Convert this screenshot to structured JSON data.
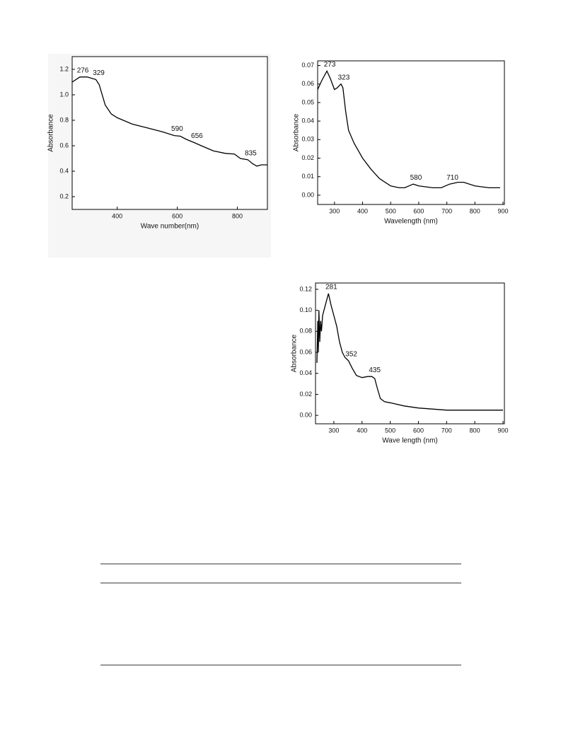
{
  "chart_data": [
    {
      "type": "line",
      "xlabel": "Wave number(nm)",
      "ylabel": "Absorbance",
      "color": "#000000",
      "x": [
        250,
        276,
        300,
        329,
        340,
        360,
        380,
        400,
        450,
        500,
        550,
        590,
        610,
        630,
        656,
        680,
        720,
        760,
        790,
        810,
        835,
        850,
        865,
        880,
        900
      ],
      "values": [
        1.1,
        1.14,
        1.14,
        1.12,
        1.08,
        0.92,
        0.85,
        0.82,
        0.77,
        0.74,
        0.71,
        0.68,
        0.675,
        0.65,
        0.625,
        0.6,
        0.56,
        0.54,
        0.535,
        0.5,
        0.49,
        0.46,
        0.44,
        0.45,
        0.45
      ],
      "xlim": [
        250,
        900
      ],
      "xticks": [
        400,
        600,
        800
      ],
      "ylim": [
        0.1,
        1.3
      ],
      "yticks": [
        0.2,
        0.4,
        0.6,
        0.8,
        {
          "value": 1.0,
          "label": "1.0"
        },
        1.2
      ],
      "annotations": [
        {
          "x": 276,
          "label": "276"
        },
        {
          "x": 329,
          "label": "329"
        },
        {
          "x": 590,
          "label": "590"
        },
        {
          "x": 656,
          "label": "656"
        },
        {
          "x": 835,
          "label": "835"
        }
      ]
    },
    {
      "type": "line",
      "xlabel": "Wavelength (nm)",
      "ylabel": "Absorbance",
      "color": "#000000",
      "x": [
        240,
        255,
        273,
        285,
        300,
        310,
        323,
        330,
        340,
        350,
        370,
        400,
        430,
        460,
        500,
        530,
        550,
        565,
        580,
        600,
        650,
        680,
        710,
        740,
        760,
        800,
        850,
        890
      ],
      "values": [
        0.057,
        0.062,
        0.067,
        0.063,
        0.057,
        0.058,
        0.06,
        0.058,
        0.045,
        0.035,
        0.028,
        0.02,
        0.014,
        0.009,
        0.005,
        0.004,
        0.004,
        0.005,
        0.006,
        0.005,
        0.004,
        0.004,
        0.006,
        0.007,
        0.007,
        0.005,
        0.004,
        0.004
      ],
      "xlim": [
        240,
        905
      ],
      "xticks": [
        300,
        400,
        500,
        600,
        700,
        800,
        900
      ],
      "ylim": [
        -0.005,
        0.0725
      ],
      "yticks": [
        {
          "value": 0,
          "label": "0.00"
        },
        0.01,
        0.02,
        0.03,
        0.04,
        0.05,
        0.06,
        0.07
      ],
      "annotations": [
        {
          "x": 273,
          "label": "273"
        },
        {
          "x": 323,
          "label": "323"
        },
        {
          "x": 580,
          "label": "580"
        },
        {
          "x": 710,
          "label": "710"
        }
      ]
    },
    {
      "type": "line",
      "xlabel": "Wave length (nm)",
      "ylabel": "Absorbance",
      "color": "#000000",
      "x": [
        240,
        243,
        245,
        247,
        250,
        253,
        256,
        260,
        270,
        281,
        290,
        300,
        310,
        320,
        330,
        340,
        352,
        365,
        380,
        400,
        420,
        435,
        445,
        455,
        465,
        480,
        500,
        550,
        600,
        650,
        700,
        750,
        800,
        850,
        900
      ],
      "values": [
        0.05,
        0.09,
        0.06,
        0.1,
        0.07,
        0.09,
        0.08,
        0.095,
        0.105,
        0.116,
        0.105,
        0.095,
        0.085,
        0.07,
        0.06,
        0.055,
        0.052,
        0.045,
        0.038,
        0.036,
        0.037,
        0.037,
        0.035,
        0.025,
        0.016,
        0.013,
        0.012,
        0.009,
        0.007,
        0.006,
        0.005,
        0.005,
        0.005,
        0.005,
        0.005
      ],
      "xlim": [
        235,
        905
      ],
      "xticks": [
        300,
        400,
        500,
        600,
        700,
        800,
        900
      ],
      "ylim": [
        -0.008,
        0.126
      ],
      "yticks": [
        {
          "value": 0,
          "label": "0.00"
        },
        {
          "value": 0.02,
          "label": "0.02"
        },
        {
          "value": 0.04,
          "label": "0.04"
        },
        {
          "value": 0.06,
          "label": "0.06"
        },
        {
          "value": 0.08,
          "label": "0.08"
        },
        {
          "value": 0.1,
          "label": "0.10"
        },
        {
          "value": 0.12,
          "label": "0.12"
        }
      ],
      "annotations": [
        {
          "x": 281,
          "label": "281"
        },
        {
          "x": 352,
          "label": "352"
        },
        {
          "x": 435,
          "label": "435"
        }
      ]
    }
  ]
}
